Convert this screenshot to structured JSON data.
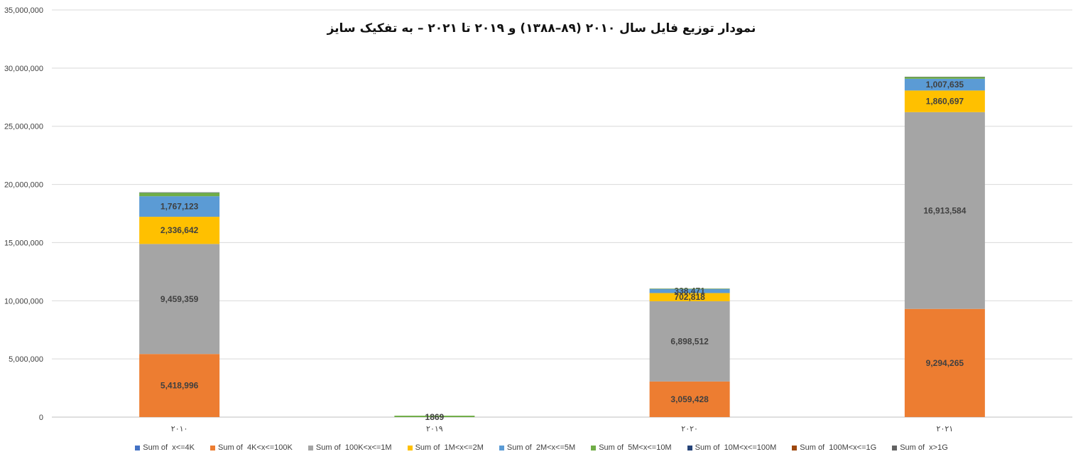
{
  "chart_data": {
    "type": "bar",
    "stacked": true,
    "title": "نمودار توزیع فایل سال ۲۰۱۰ (۸۹–۱۳۸۸) و ۲۰۱۹ تا ۲۰۲۱ – به تفکیک سایز",
    "categories": [
      "۲۰۱۰",
      "۲۰۱۹",
      "۲۰۲۰",
      "۲۰۲۱"
    ],
    "ylim": [
      0,
      35000000
    ],
    "yticks": [
      0,
      5000000,
      10000000,
      15000000,
      20000000,
      25000000,
      30000000,
      35000000
    ],
    "ytick_labels": [
      "0",
      "5,000,000",
      "10,000,000",
      "15,000,000",
      "20,000,000",
      "25,000,000",
      "30,000,000",
      "35,000,000"
    ],
    "grid": true,
    "legend_position": "bottom",
    "series": [
      {
        "name": "Sum of  x<=4K",
        "color": "#4472C4",
        "values": [
          5000,
          50,
          3000,
          8000
        ],
        "labels": [
          "",
          "",
          "",
          ""
        ]
      },
      {
        "name": "Sum of  4K<x<=100K",
        "color": "#ED7D31",
        "values": [
          5418996,
          300,
          3059428,
          9294265
        ],
        "labels": [
          "5,418,996",
          "",
          "3,059,428",
          "9,294,265"
        ]
      },
      {
        "name": "Sum of  100K<x<=1M",
        "color": "#A5A5A5",
        "values": [
          9459359,
          500,
          6898512,
          16913584
        ],
        "labels": [
          "9,459,359",
          "",
          "6,898,512",
          "16,913,584"
        ]
      },
      {
        "name": "Sum of  1M<x<=2M",
        "color": "#FFC000",
        "values": [
          2336642,
          600,
          702818,
          1860697
        ],
        "labels": [
          "2,336,642",
          "",
          "702,818",
          "1,860,697"
        ]
      },
      {
        "name": "Sum of  2M<x<=5M",
        "color": "#5B9BD5",
        "values": [
          1767123,
          700,
          338471,
          1007635
        ],
        "labels": [
          "1,767,123",
          "",
          "338,471",
          "1,007,635"
        ]
      },
      {
        "name": "Sum of  5M<x<=10M",
        "color": "#70AD47",
        "values": [
          300000,
          120000,
          40000,
          150000
        ],
        "labels": [
          "",
          "",
          "",
          ""
        ]
      },
      {
        "name": "Sum of  10M<x<=100M",
        "color": "#264478",
        "values": [
          30000,
          200,
          10000,
          20000
        ],
        "labels": [
          "",
          "",
          "",
          ""
        ]
      },
      {
        "name": "Sum of  100M<x<=1G",
        "color": "#9E480E",
        "values": [
          5000,
          50,
          2000,
          5000
        ],
        "labels": [
          "",
          "",
          "",
          ""
        ]
      },
      {
        "name": "Sum of  x>1G",
        "color": "#636363",
        "values": [
          1000,
          10,
          500,
          1000
        ],
        "labels": [
          "",
          "",
          "",
          ""
        ]
      }
    ],
    "stacked_label_cluster": "1869"
  }
}
